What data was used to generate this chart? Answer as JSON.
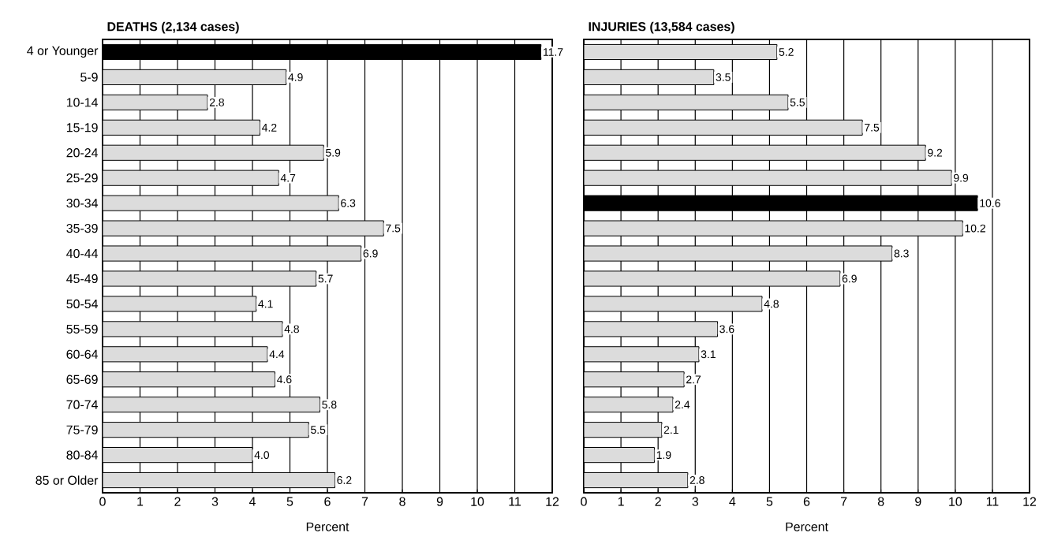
{
  "chart_data": [
    {
      "type": "bar",
      "orientation": "horizontal",
      "title": "DEATHS (2,134 cases)",
      "xlabel": "Percent",
      "categories": [
        "4 or Younger",
        "5-9",
        "10-14",
        "15-19",
        "20-24",
        "25-29",
        "30-34",
        "35-39",
        "40-44",
        "45-49",
        "50-54",
        "55-59",
        "60-64",
        "65-69",
        "70-74",
        "75-79",
        "80-84",
        "85 or Older"
      ],
      "values": [
        11.7,
        4.9,
        2.8,
        4.2,
        5.9,
        4.7,
        6.3,
        7.5,
        6.9,
        5.7,
        4.1,
        4.8,
        4.4,
        4.6,
        5.8,
        5.5,
        4.0,
        6.2
      ],
      "value_labels": [
        "11.7",
        "4.9",
        "2.8",
        "4.2",
        "5.9",
        "4.7",
        "6.3",
        "7.5",
        "6.9",
        "5.7",
        "4.1",
        "4.8",
        "4.4",
        "4.6",
        "5.8",
        "5.5",
        "4.0",
        "6.2"
      ],
      "colors": [
        "#000000",
        "#dcdcdc",
        "#dcdcdc",
        "#dcdcdc",
        "#dcdcdc",
        "#dcdcdc",
        "#dcdcdc",
        "#dcdcdc",
        "#dcdcdc",
        "#dcdcdc",
        "#dcdcdc",
        "#dcdcdc",
        "#dcdcdc",
        "#dcdcdc",
        "#dcdcdc",
        "#dcdcdc",
        "#dcdcdc",
        "#dcdcdc"
      ],
      "xlim": [
        0,
        12
      ],
      "xticks": [
        0,
        1,
        2,
        3,
        4,
        5,
        6,
        7,
        8,
        9,
        10,
        11,
        12
      ],
      "grid": "x"
    },
    {
      "type": "bar",
      "orientation": "horizontal",
      "title": "INJURIES (13,584 cases)",
      "xlabel": "Percent",
      "categories": [
        null,
        null,
        null,
        null,
        null,
        null,
        null,
        null,
        null,
        null,
        null,
        null,
        null,
        null,
        null,
        null,
        null,
        null
      ],
      "values": [
        5.2,
        3.5,
        5.5,
        7.5,
        9.2,
        9.9,
        10.6,
        10.2,
        8.3,
        6.9,
        4.8,
        3.6,
        3.1,
        2.7,
        2.4,
        2.1,
        1.9,
        2.8
      ],
      "colors": [
        "#dcdcdc",
        "#dcdcdc",
        "#dcdcdc",
        "#dcdcdc",
        "#dcdcdc",
        "#dcdcdc",
        "#000000",
        "#dcdcdc",
        "#dcdcdc",
        "#dcdcdc",
        "#dcdcdc",
        "#dcdcdc",
        "#dcdcdc",
        "#dcdcdc",
        "#dcdcdc",
        "#dcdcdc",
        "#dcdcdc",
        "#dcdcdc"
      ],
      "xlim": [
        0,
        12
      ],
      "xticks": [
        0,
        1,
        2,
        3,
        4,
        5,
        6,
        7,
        8,
        9,
        10,
        11,
        12
      ],
      "grid": "x",
      "data_labels": true
    }
  ]
}
